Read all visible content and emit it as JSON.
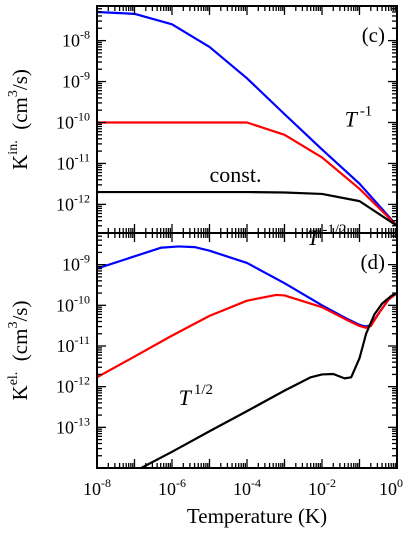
{
  "chart_data": [
    {
      "type": "line",
      "panel_label": "(c)",
      "ylabel": {
        "main": "K",
        "sup": "in.",
        "unit_pre": "(cm",
        "unit_sup": "3",
        "unit_post": "/s)"
      },
      "xscale": "log",
      "yscale": "log",
      "xlim": [
        1e-08,
        1
      ],
      "ylim": [
        2e-13,
        7e-08
      ],
      "y_tick_labels": [
        {
          "base": "10",
          "exp": "-8",
          "value": 1e-08
        },
        {
          "base": "10",
          "exp": "-9",
          "value": 1e-09
        },
        {
          "base": "10",
          "exp": "-10",
          "value": 1e-10
        },
        {
          "base": "10",
          "exp": "-11",
          "value": 1e-11
        },
        {
          "base": "10",
          "exp": "-12",
          "value": 1e-12
        }
      ],
      "annotations": [
        {
          "text": "T",
          "sup": "-1",
          "italic": true,
          "x": 0.04,
          "y": 8e-11
        },
        {
          "text": "const.",
          "sup": "",
          "italic": false,
          "x": 1e-05,
          "y": 3.5e-12
        }
      ],
      "series": [
        {
          "color": "#0000ff",
          "x": [
            1e-08,
            1e-07,
            1e-06,
            1e-05,
            0.0001,
            0.001,
            0.01,
            0.1,
            1
          ],
          "y": [
            5e-08,
            4.5e-08,
            2.5e-08,
            7e-09,
            1.2e-09,
            1.6e-10,
            2.2e-11,
            3.2e-12,
            3e-13
          ]
        },
        {
          "color": "#ff0000",
          "x": [
            1e-08,
            1e-07,
            1e-06,
            1e-05,
            0.0001,
            0.001,
            0.01,
            0.1,
            1
          ],
          "y": [
            1e-10,
            1e-10,
            1e-10,
            1e-10,
            1e-10,
            5e-11,
            1.4e-11,
            2.4e-12,
            3e-13
          ]
        },
        {
          "color": "#000000",
          "x": [
            1e-08,
            1e-07,
            1e-06,
            1e-05,
            0.0001,
            0.001,
            0.01,
            0.1,
            1
          ],
          "y": [
            2e-12,
            2e-12,
            2e-12,
            2e-12,
            2e-12,
            1.95e-12,
            1.8e-12,
            1.2e-12,
            3e-13
          ]
        }
      ]
    },
    {
      "type": "line",
      "panel_label": "(d)",
      "ylabel": {
        "main": "K",
        "sup": "el.",
        "unit_pre": "(cm",
        "unit_sup": "3",
        "unit_post": "/s)"
      },
      "xlabel": "Temperature (K)",
      "xscale": "log",
      "yscale": "log",
      "xlim": [
        1e-08,
        1
      ],
      "ylim": [
        1e-14,
        6e-09
      ],
      "x_tick_labels": [
        {
          "base": "10",
          "exp": "-8",
          "value": 1e-08
        },
        {
          "base": "10",
          "exp": "-6",
          "value": 1e-06
        },
        {
          "base": "10",
          "exp": "-4",
          "value": 0.0001
        },
        {
          "base": "10",
          "exp": "-2",
          "value": 0.01
        },
        {
          "base": "10",
          "exp": "0",
          "value": 1
        }
      ],
      "y_tick_labels": [
        {
          "base": "10",
          "exp": "-9",
          "value": 1e-09
        },
        {
          "base": "10",
          "exp": "-10",
          "value": 1e-10
        },
        {
          "base": "10",
          "exp": "-11",
          "value": 1e-11
        },
        {
          "base": "10",
          "exp": "-12",
          "value": 1e-12
        },
        {
          "base": "10",
          "exp": "-13",
          "value": 1e-13
        }
      ],
      "annotations": [
        {
          "text": "T",
          "sup": "-1/2",
          "italic": true,
          "x": 0.004,
          "y": 3e-09
        },
        {
          "text": "T",
          "sup": "1/2",
          "italic": true,
          "x": 1.5e-06,
          "y": 3.5e-13
        }
      ],
      "series": [
        {
          "color": "#0000ff",
          "x": [
            1e-08,
            1e-07,
            5e-07,
            1.5e-06,
            4e-06,
            1e-05,
            0.0001,
            0.001,
            0.01,
            0.05,
            0.1,
            0.15,
            0.2,
            0.35,
            0.6,
            1
          ],
          "y": [
            8e-10,
            1.6e-09,
            2.6e-09,
            2.8e-09,
            2.7e-09,
            2.2e-09,
            1.1e-09,
            3.5e-10,
            1e-10,
            4.5e-11,
            3.3e-11,
            3e-11,
            3.3e-11,
            7e-11,
            1.4e-10,
            2e-10
          ]
        },
        {
          "color": "#ff0000",
          "x": [
            1e-08,
            1e-07,
            1e-06,
            1e-05,
            0.0001,
            0.0006,
            0.001,
            0.01,
            0.05,
            0.1,
            0.15,
            0.2,
            0.35,
            0.6,
            1
          ],
          "y": [
            1.7e-12,
            5.5e-12,
            1.8e-11,
            5.5e-11,
            1.3e-10,
            1.8e-10,
            1.75e-10,
            9e-11,
            4.2e-11,
            3.1e-11,
            2.8e-11,
            3.1e-11,
            7e-11,
            1.4e-10,
            2e-10
          ]
        },
        {
          "color": "#000000",
          "x": [
            1.5e-07,
            1e-06,
            1e-05,
            0.0001,
            0.001,
            0.005,
            0.01,
            0.02,
            0.04,
            0.06,
            0.1,
            0.15,
            0.25,
            0.4,
            0.7,
            1
          ],
          "y": [
            1e-14,
            2.5e-14,
            8e-14,
            2.5e-13,
            8e-13,
            1.7e-12,
            2e-12,
            2.05e-12,
            1.6e-12,
            1.7e-12,
            5e-12,
            2e-11,
            6e-11,
            1.1e-10,
            1.7e-10,
            2e-10
          ]
        }
      ]
    }
  ]
}
